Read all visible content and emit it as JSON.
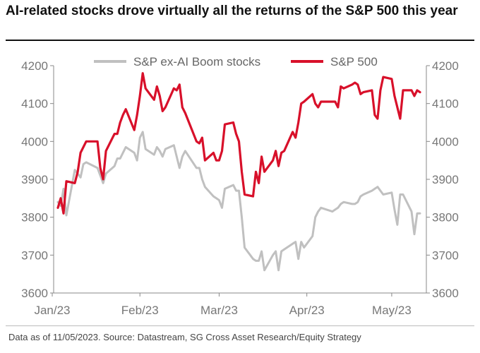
{
  "title": "AI-related stocks drove virtually all the returns of the S&P 500 this year",
  "source": "Data as of 11/05/2023. Source: Datastream, SG Cross Asset Research/Equity Strategy",
  "chart_data": {
    "type": "line",
    "title": "AI-related stocks drove virtually all the returns of the S&P 500 this year",
    "xlabel": "",
    "ylabel": "",
    "x_ticks": [
      "Jan/23",
      "Feb/23",
      "Mar/23",
      "Apr/23",
      "May/23"
    ],
    "ylim": [
      3600,
      4200
    ],
    "y_ticks": [
      3600,
      3700,
      3800,
      3900,
      4000,
      4100,
      4200
    ],
    "y_axis_right": true,
    "grid": false,
    "legend_position": "top",
    "series": [
      {
        "name": "S&P ex-AI Boom stocks",
        "color": "#c0c0c0",
        "x": [
          "2023-01-03",
          "2023-01-04",
          "2023-01-05",
          "2023-01-06",
          "2023-01-09",
          "2023-01-10",
          "2023-01-11",
          "2023-01-12",
          "2023-01-13",
          "2023-01-17",
          "2023-01-18",
          "2023-01-19",
          "2023-01-20",
          "2023-01-23",
          "2023-01-24",
          "2023-01-25",
          "2023-01-26",
          "2023-01-27",
          "2023-01-30",
          "2023-01-31",
          "2023-02-01",
          "2023-02-02",
          "2023-02-03",
          "2023-02-06",
          "2023-02-07",
          "2023-02-08",
          "2023-02-09",
          "2023-02-10",
          "2023-02-13",
          "2023-02-14",
          "2023-02-15",
          "2023-02-16",
          "2023-02-17",
          "2023-02-21",
          "2023-02-22",
          "2023-02-23",
          "2023-02-24",
          "2023-02-27",
          "2023-02-28",
          "2023-03-01",
          "2023-03-02",
          "2023-03-03",
          "2023-03-06",
          "2023-03-07",
          "2023-03-08",
          "2023-03-09",
          "2023-03-10",
          "2023-03-13",
          "2023-03-14",
          "2023-03-15",
          "2023-03-16",
          "2023-03-17",
          "2023-03-20",
          "2023-03-21",
          "2023-03-22",
          "2023-03-23",
          "2023-03-24",
          "2023-03-27",
          "2023-03-28",
          "2023-03-29",
          "2023-03-30",
          "2023-03-31",
          "2023-04-03",
          "2023-04-04",
          "2023-04-05",
          "2023-04-06",
          "2023-04-10",
          "2023-04-11",
          "2023-04-12",
          "2023-04-13",
          "2023-04-14",
          "2023-04-17",
          "2023-04-18",
          "2023-04-19",
          "2023-04-20",
          "2023-04-21",
          "2023-04-24",
          "2023-04-25",
          "2023-04-26",
          "2023-04-27",
          "2023-04-28",
          "2023-05-01",
          "2023-05-02",
          "2023-05-03",
          "2023-05-04",
          "2023-05-05",
          "2023-05-08",
          "2023-05-09",
          "2023-05-10",
          "2023-05-11"
        ],
        "values": [
          3840,
          3830,
          3875,
          3805,
          3925,
          3915,
          3905,
          3940,
          3945,
          3930,
          3910,
          3890,
          3915,
          3935,
          3955,
          3955,
          3970,
          3985,
          3970,
          3950,
          4010,
          4025,
          3980,
          3965,
          3985,
          3975,
          3960,
          3980,
          3990,
          3960,
          3930,
          3960,
          3975,
          3930,
          3930,
          3900,
          3880,
          3855,
          3850,
          3845,
          3825,
          3875,
          3885,
          3870,
          3870,
          3800,
          3720,
          3690,
          3685,
          3685,
          3710,
          3660,
          3700,
          3710,
          3660,
          3710,
          3715,
          3730,
          3735,
          3690,
          3735,
          3720,
          3750,
          3800,
          3815,
          3825,
          3815,
          3820,
          3825,
          3835,
          3840,
          3835,
          3835,
          3840,
          3855,
          3860,
          3870,
          3875,
          3880,
          3870,
          3860,
          3865,
          3820,
          3780,
          3860,
          3860,
          3815,
          3755,
          3810,
          3810
        ]
      },
      {
        "name": "S&P 500",
        "color": "#d8102a",
        "x": [
          "2023-01-03",
          "2023-01-04",
          "2023-01-05",
          "2023-01-06",
          "2023-01-09",
          "2023-01-10",
          "2023-01-11",
          "2023-01-12",
          "2023-01-13",
          "2023-01-17",
          "2023-01-18",
          "2023-01-19",
          "2023-01-20",
          "2023-01-23",
          "2023-01-24",
          "2023-01-25",
          "2023-01-26",
          "2023-01-27",
          "2023-01-30",
          "2023-01-31",
          "2023-02-01",
          "2023-02-02",
          "2023-02-03",
          "2023-02-06",
          "2023-02-07",
          "2023-02-08",
          "2023-02-09",
          "2023-02-10",
          "2023-02-13",
          "2023-02-14",
          "2023-02-15",
          "2023-02-16",
          "2023-02-17",
          "2023-02-21",
          "2023-02-22",
          "2023-02-23",
          "2023-02-24",
          "2023-02-27",
          "2023-02-28",
          "2023-03-01",
          "2023-03-02",
          "2023-03-03",
          "2023-03-06",
          "2023-03-07",
          "2023-03-08",
          "2023-03-09",
          "2023-03-10",
          "2023-03-13",
          "2023-03-14",
          "2023-03-15",
          "2023-03-16",
          "2023-03-17",
          "2023-03-20",
          "2023-03-21",
          "2023-03-22",
          "2023-03-23",
          "2023-03-24",
          "2023-03-27",
          "2023-03-28",
          "2023-03-29",
          "2023-03-30",
          "2023-03-31",
          "2023-04-03",
          "2023-04-04",
          "2023-04-05",
          "2023-04-06",
          "2023-04-10",
          "2023-04-11",
          "2023-04-12",
          "2023-04-13",
          "2023-04-14",
          "2023-04-17",
          "2023-04-18",
          "2023-04-19",
          "2023-04-20",
          "2023-04-21",
          "2023-04-24",
          "2023-04-25",
          "2023-04-26",
          "2023-04-27",
          "2023-04-28",
          "2023-05-01",
          "2023-05-02",
          "2023-05-03",
          "2023-05-04",
          "2023-05-05",
          "2023-05-08",
          "2023-05-09",
          "2023-05-10",
          "2023-05-11"
        ],
        "values": [
          3825,
          3850,
          3810,
          3895,
          3890,
          3920,
          3970,
          3985,
          4000,
          4000,
          3930,
          3900,
          3975,
          4020,
          4020,
          4050,
          4070,
          4085,
          4030,
          4070,
          4120,
          4180,
          4140,
          4110,
          4145,
          4120,
          4080,
          4090,
          4140,
          4135,
          4150,
          4090,
          4075,
          4000,
          3995,
          4010,
          3950,
          3970,
          3950,
          3950,
          3975,
          4045,
          4050,
          4020,
          4000,
          3920,
          3860,
          3855,
          3920,
          3890,
          3960,
          3920,
          3950,
          3975,
          3935,
          3970,
          3975,
          4025,
          4010,
          4050,
          4100,
          4105,
          4125,
          4100,
          4090,
          4105,
          4105,
          4105,
          4090,
          4145,
          4140,
          4150,
          4155,
          4150,
          4125,
          4130,
          4135,
          4070,
          4060,
          4135,
          4170,
          4165,
          4120,
          4090,
          4060,
          4135,
          4135,
          4120,
          4135,
          4130
        ]
      }
    ]
  }
}
